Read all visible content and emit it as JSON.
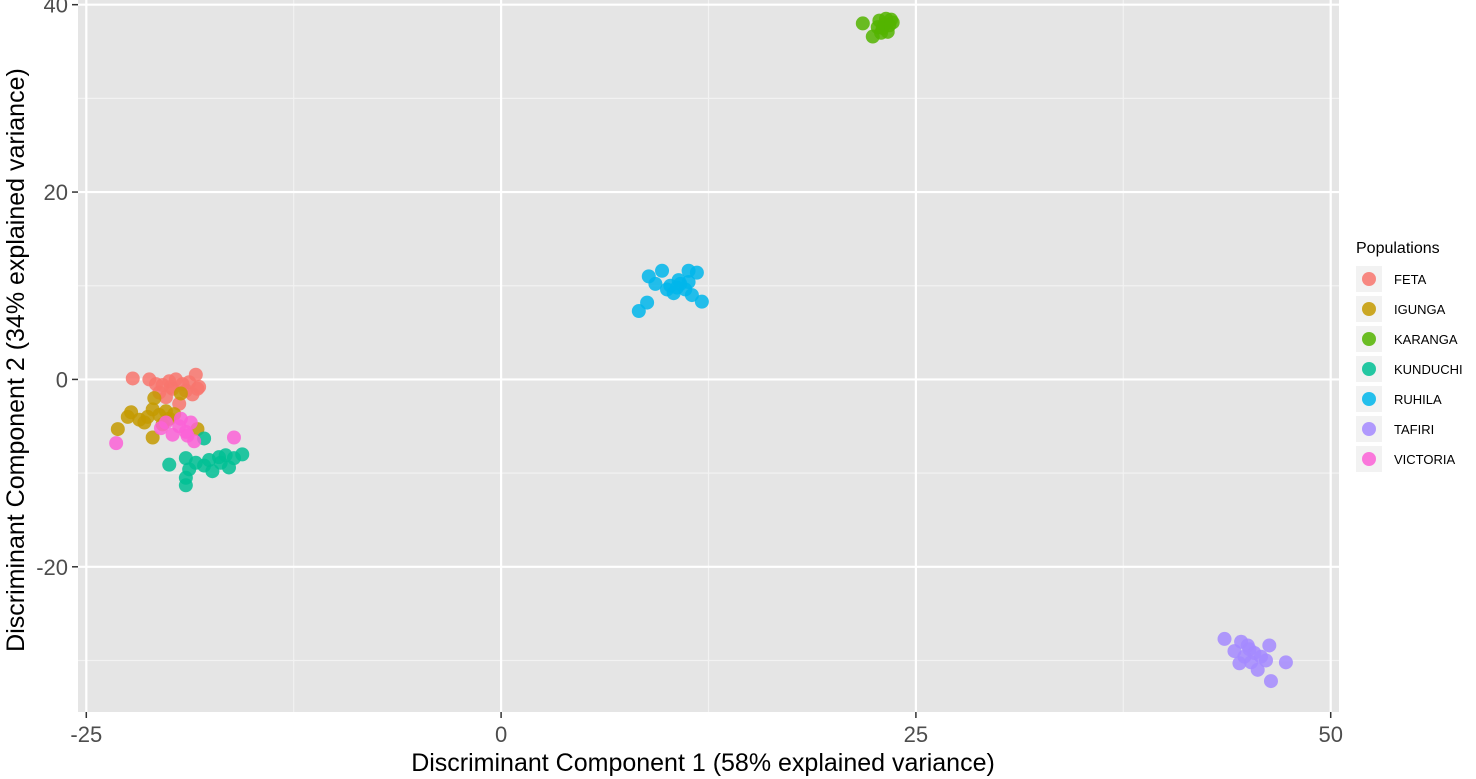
{
  "chart_data": {
    "type": "scatter",
    "title": "",
    "xlabel": "Discriminant Component 1 (58% explained variance)",
    "ylabel": "Discriminant Component 2 (34% explained variance)",
    "xlim": [
      -25.5,
      50.5
    ],
    "ylim": [
      -35.5,
      40.5
    ],
    "x_ticks": [
      -25,
      0,
      25,
      50
    ],
    "x_tick_labels": [
      "-25",
      "0",
      "25",
      "50"
    ],
    "y_ticks": [
      -20,
      0,
      20,
      40
    ],
    "y_tick_labels": [
      "-20",
      "0",
      "20",
      "40"
    ],
    "grid": true,
    "legend_position": "right",
    "legend_title": "Populations",
    "series": [
      {
        "name": "FETA",
        "color": "#F8766D",
        "points": [
          [
            -22.2,
            0.1
          ],
          [
            -21.2,
            0.0
          ],
          [
            -20.4,
            -0.6
          ],
          [
            -20.0,
            -0.2
          ],
          [
            -19.6,
            0.0
          ],
          [
            -19.2,
            -0.5
          ],
          [
            -18.8,
            -0.3
          ],
          [
            -18.4,
            0.5
          ],
          [
            -18.2,
            -0.8
          ],
          [
            -19.0,
            -1.2
          ],
          [
            -19.8,
            -1.0
          ],
          [
            -20.6,
            -1.4
          ],
          [
            -20.2,
            -1.9
          ],
          [
            -19.4,
            -2.6
          ],
          [
            -18.6,
            -1.6
          ],
          [
            -18.3,
            -1.0
          ],
          [
            -20.8,
            -0.5
          ],
          [
            -19.9,
            -0.8
          ]
        ]
      },
      {
        "name": "IGUNGA",
        "color": "#C49A00",
        "points": [
          [
            -23.1,
            -5.3
          ],
          [
            -22.5,
            -4.0
          ],
          [
            -22.3,
            -3.5
          ],
          [
            -21.8,
            -4.3
          ],
          [
            -21.3,
            -4.0
          ],
          [
            -21.0,
            -3.2
          ],
          [
            -20.6,
            -3.8
          ],
          [
            -20.2,
            -3.4
          ],
          [
            -20.0,
            -4.2
          ],
          [
            -19.7,
            -3.7
          ],
          [
            -20.9,
            -2.0
          ],
          [
            -21.5,
            -4.6
          ],
          [
            -21.0,
            -6.2
          ],
          [
            -19.3,
            -1.5
          ],
          [
            -18.3,
            -5.3
          ],
          [
            -20.4,
            -4.8
          ]
        ]
      },
      {
        "name": "KARANGA",
        "color": "#53B400",
        "points": [
          [
            21.8,
            38.0
          ],
          [
            22.4,
            36.6
          ],
          [
            22.8,
            38.3
          ],
          [
            23.0,
            37.5
          ],
          [
            23.2,
            38.5
          ],
          [
            23.4,
            37.8
          ],
          [
            23.6,
            38.1
          ],
          [
            22.9,
            37.0
          ],
          [
            23.3,
            37.1
          ],
          [
            23.1,
            37.9
          ],
          [
            23.5,
            38.4
          ],
          [
            22.7,
            37.6
          ]
        ]
      },
      {
        "name": "KUNDUCHI",
        "color": "#00C094",
        "points": [
          [
            -20.0,
            -9.1
          ],
          [
            -19.0,
            -8.4
          ],
          [
            -18.8,
            -9.6
          ],
          [
            -19.0,
            -10.5
          ],
          [
            -19.0,
            -11.3
          ],
          [
            -18.4,
            -8.9
          ],
          [
            -17.9,
            -9.2
          ],
          [
            -17.6,
            -8.6
          ],
          [
            -17.4,
            -9.8
          ],
          [
            -17.0,
            -8.3
          ],
          [
            -16.6,
            -8.1
          ],
          [
            -16.4,
            -9.4
          ],
          [
            -16.1,
            -8.4
          ],
          [
            -15.6,
            -8.0
          ],
          [
            -17.9,
            -6.3
          ],
          [
            -16.9,
            -8.9
          ]
        ]
      },
      {
        "name": "RUHILA",
        "color": "#00B6EB",
        "points": [
          [
            8.3,
            7.3
          ],
          [
            8.8,
            8.2
          ],
          [
            8.9,
            11.0
          ],
          [
            9.3,
            10.2
          ],
          [
            9.7,
            11.6
          ],
          [
            10.0,
            9.6
          ],
          [
            10.2,
            10.0
          ],
          [
            10.4,
            9.2
          ],
          [
            10.6,
            9.8
          ],
          [
            10.8,
            10.2
          ],
          [
            11.1,
            9.6
          ],
          [
            11.3,
            10.4
          ],
          [
            11.5,
            9.0
          ],
          [
            11.3,
            11.6
          ],
          [
            11.8,
            11.4
          ],
          [
            12.1,
            8.3
          ],
          [
            10.7,
            10.6
          ]
        ]
      },
      {
        "name": "TAFIRI",
        "color": "#A58AFF",
        "points": [
          [
            43.6,
            -27.7
          ],
          [
            44.2,
            -29.0
          ],
          [
            44.6,
            -28.0
          ],
          [
            44.8,
            -29.6
          ],
          [
            45.0,
            -28.4
          ],
          [
            45.2,
            -30.2
          ],
          [
            45.4,
            -29.2
          ],
          [
            45.6,
            -31.0
          ],
          [
            45.8,
            -29.6
          ],
          [
            46.1,
            -30.0
          ],
          [
            46.3,
            -28.4
          ],
          [
            46.4,
            -32.2
          ],
          [
            47.3,
            -30.2
          ],
          [
            44.5,
            -30.3
          ],
          [
            45.1,
            -28.8
          ]
        ]
      },
      {
        "name": "VICTORIA",
        "color": "#FB61D7",
        "points": [
          [
            -23.2,
            -6.8
          ],
          [
            -20.2,
            -4.6
          ],
          [
            -19.8,
            -5.9
          ],
          [
            -19.4,
            -5.0
          ],
          [
            -19.0,
            -5.6
          ],
          [
            -18.7,
            -4.6
          ],
          [
            -18.5,
            -6.6
          ],
          [
            -18.9,
            -6.0
          ],
          [
            -19.3,
            -4.2
          ],
          [
            -16.1,
            -6.2
          ],
          [
            -20.5,
            -5.2
          ]
        ]
      }
    ]
  }
}
